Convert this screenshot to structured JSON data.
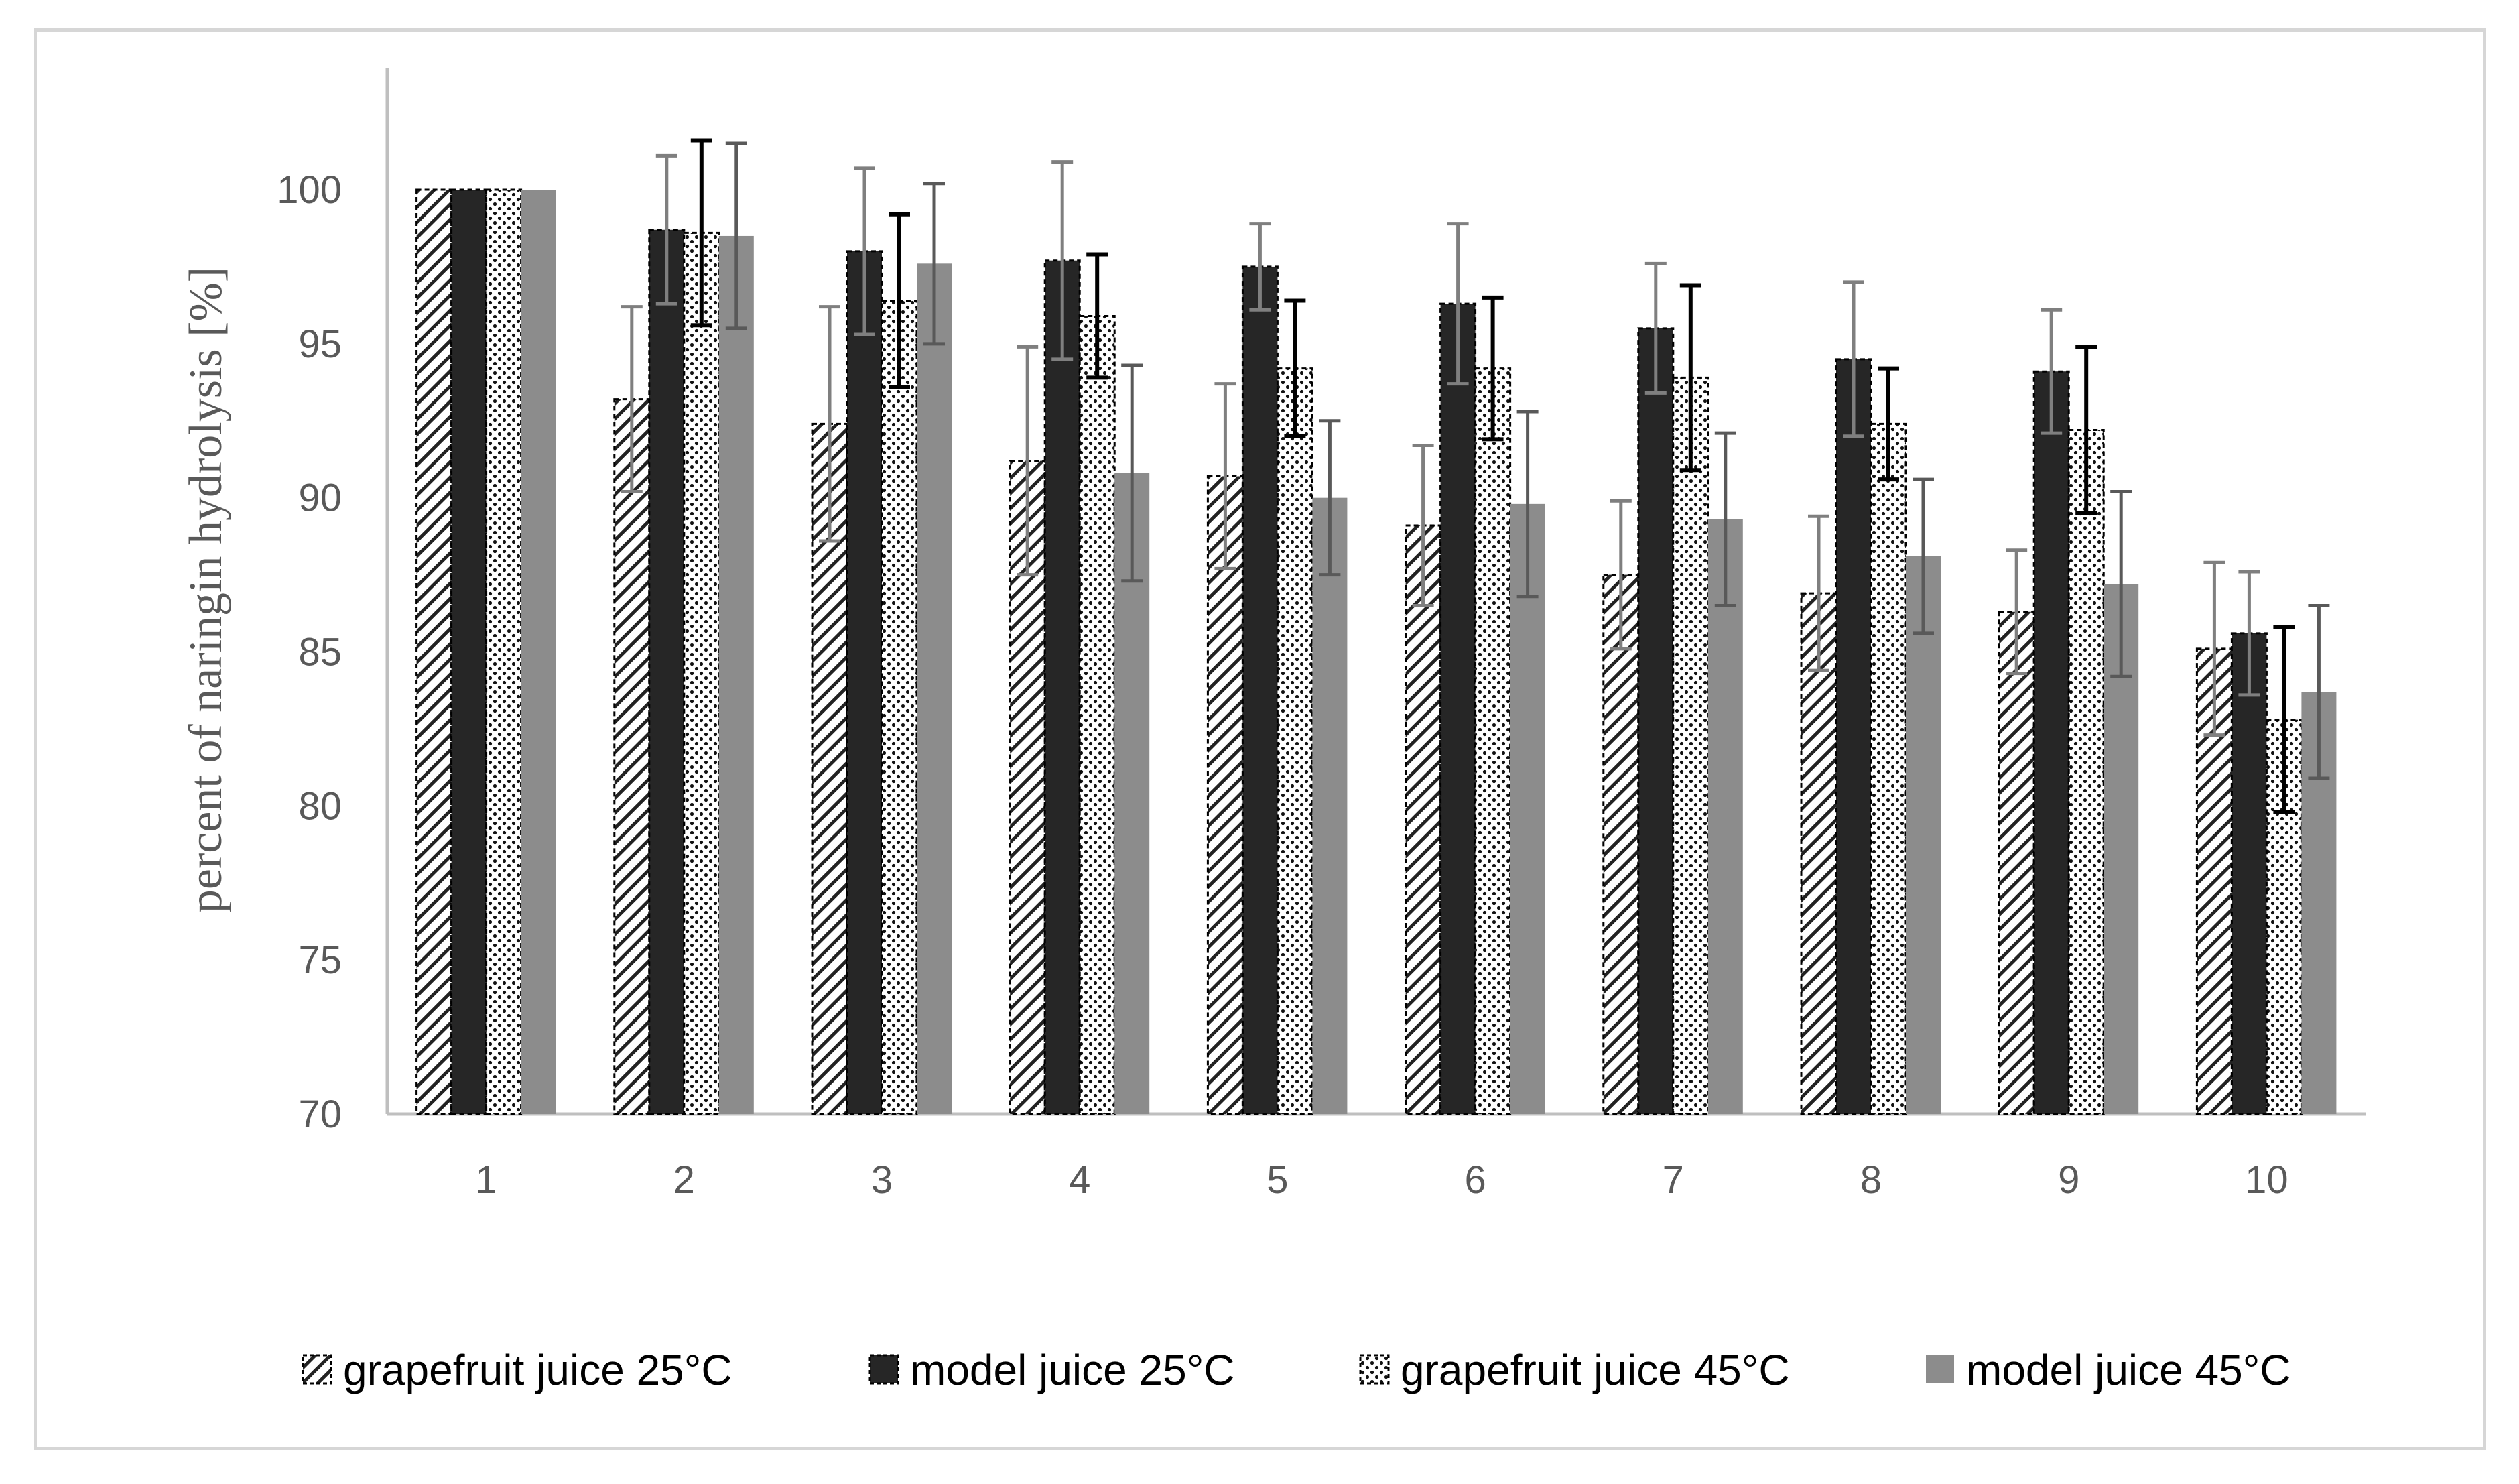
{
  "chart_data": {
    "type": "bar",
    "title": "",
    "xlabel": "",
    "ylabel": "percent of naringin hydrolysis [%]",
    "ylim": [
      70,
      103
    ],
    "yticks": [
      70,
      75,
      80,
      85,
      90,
      95,
      100
    ],
    "categories": [
      "1",
      "2",
      "3",
      "4",
      "5",
      "6",
      "7",
      "8",
      "9",
      "10"
    ],
    "series": [
      {
        "name": "grapefruit juice 25°C",
        "pattern": "diagonal-hatch",
        "color": "#000000",
        "values": [
          100,
          93.2,
          92.4,
          91.2,
          90.7,
          89.1,
          87.5,
          86.9,
          86.3,
          85.1
        ],
        "errors": [
          0,
          3.0,
          3.8,
          3.7,
          3.0,
          2.6,
          2.4,
          2.5,
          2.0,
          2.8
        ]
      },
      {
        "name": "model juice 25°C",
        "pattern": "solid",
        "color": "#262626",
        "values": [
          100,
          98.7,
          98.0,
          97.7,
          97.5,
          96.3,
          95.5,
          94.5,
          94.1,
          85.6
        ],
        "errors": [
          0,
          2.4,
          2.7,
          3.2,
          1.4,
          2.6,
          2.1,
          2.5,
          2.0,
          2.0
        ]
      },
      {
        "name": "grapefruit juice 45°C",
        "pattern": "dots",
        "color": "#000000",
        "values": [
          100,
          98.6,
          96.4,
          95.9,
          94.2,
          94.2,
          93.9,
          92.4,
          92.2,
          82.8
        ],
        "errors": [
          0,
          3.0,
          2.8,
          2.0,
          2.2,
          2.3,
          3.0,
          1.8,
          2.7,
          3.0
        ]
      },
      {
        "name": "model juice 45°C",
        "pattern": "solid",
        "color": "#8c8c8c",
        "values": [
          100,
          98.5,
          97.6,
          90.8,
          90.0,
          89.8,
          89.3,
          88.1,
          87.2,
          83.7
        ],
        "errors": [
          0,
          3.0,
          2.6,
          3.5,
          2.5,
          3.0,
          2.8,
          2.5,
          3.0,
          2.8
        ]
      }
    ],
    "grid": false,
    "legend_position": "bottom"
  }
}
